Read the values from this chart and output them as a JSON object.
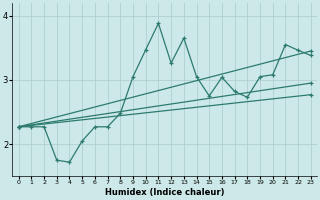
{
  "xlabel": "Humidex (Indice chaleur)",
  "bg_color": "#cce8e8",
  "line_color": "#2d7b6e",
  "grid_color": "#aacccc",
  "xlim": [
    -0.5,
    23.5
  ],
  "ylim": [
    1.5,
    4.2
  ],
  "xticks": [
    0,
    1,
    2,
    3,
    4,
    5,
    6,
    7,
    8,
    9,
    10,
    11,
    12,
    13,
    14,
    15,
    16,
    17,
    18,
    19,
    20,
    21,
    22,
    23
  ],
  "yticks": [
    2,
    3,
    4
  ],
  "series": {
    "spiky_x": [
      0,
      1,
      2,
      3,
      4,
      5,
      6,
      7,
      8,
      9,
      10,
      11,
      12,
      13,
      14,
      15,
      16,
      17,
      18,
      19,
      20,
      21,
      22,
      23
    ],
    "spiky_y": [
      2.27,
      2.27,
      2.27,
      1.75,
      1.72,
      2.05,
      2.27,
      2.27,
      2.48,
      3.05,
      3.47,
      3.88,
      3.26,
      3.65,
      3.05,
      2.75,
      3.04,
      2.82,
      2.73,
      3.05,
      3.08,
      3.55,
      3.46,
      3.38
    ],
    "line1_x": [
      0,
      23
    ],
    "line1_y": [
      2.27,
      3.45
    ],
    "line2_x": [
      0,
      23
    ],
    "line2_y": [
      2.27,
      2.95
    ],
    "line3_x": [
      0,
      23
    ],
    "line3_y": [
      2.27,
      2.77
    ]
  }
}
